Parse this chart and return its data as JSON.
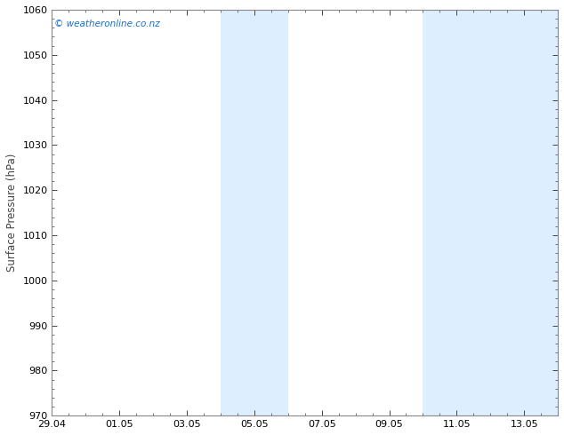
{
  "ylabel": "Surface Pressure (hPa)",
  "ylim": [
    970,
    1060
  ],
  "yticks": [
    970,
    980,
    990,
    1000,
    1010,
    1020,
    1030,
    1040,
    1050,
    1060
  ],
  "xtick_labels": [
    "29.04",
    "01.05",
    "03.05",
    "05.05",
    "07.05",
    "09.05",
    "11.05",
    "13.05"
  ],
  "xtick_positions_days": [
    0,
    2,
    4,
    6,
    8,
    10,
    12,
    14
  ],
  "xlim": [
    0,
    15
  ],
  "shaded_bands": [
    {
      "x_start_day": 5,
      "x_end_day": 7
    },
    {
      "x_start_day": 11,
      "x_end_day": 13
    },
    {
      "x_start_day": 13,
      "x_end_day": 15
    }
  ],
  "shaded_color": "#ddeeff",
  "background_color": "#ffffff",
  "plot_bg_color": "#ffffff",
  "watermark_text": "© weatheronline.co.nz",
  "watermark_color": "#1a6ec9",
  "border_color": "#888888",
  "tick_color": "#444444",
  "title_color": "#111111",
  "title_fontsize": 10.5,
  "label_fontsize": 8.5,
  "tick_fontsize": 8
}
